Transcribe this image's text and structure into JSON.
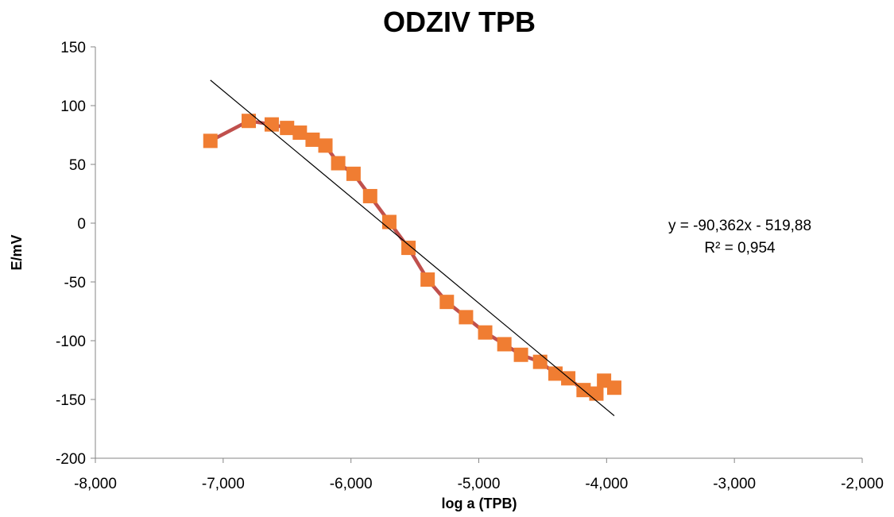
{
  "chart_data": {
    "type": "scatter",
    "title": "ODZIV TPB",
    "xlabel": "log a (TPB)",
    "ylabel": "E/mV",
    "xlim": [
      -8,
      -2
    ],
    "ylim": [
      -200,
      150
    ],
    "x_ticks": [
      -8,
      -7,
      -6,
      -5,
      -4,
      -3,
      -2
    ],
    "x_tick_labels": [
      "-8,000",
      "-7,000",
      "-6,000",
      "-5,000",
      "-4,000",
      "-3,000",
      "-2,000"
    ],
    "y_ticks": [
      -200,
      -150,
      -100,
      -50,
      0,
      50,
      100,
      150
    ],
    "y_tick_labels": [
      "-200",
      "-150",
      "-100",
      "-50",
      "0",
      "50",
      "100",
      "150"
    ],
    "grid": false,
    "legend": "none",
    "series": [
      {
        "marker": "square",
        "line_color": "#c0504d",
        "marker_color": "#f07d32",
        "x": [
          -7.1,
          -6.8,
          -6.62,
          -6.5,
          -6.4,
          -6.3,
          -6.2,
          -6.1,
          -5.98,
          -5.85,
          -5.7,
          -5.55,
          -5.4,
          -5.25,
          -5.1,
          -4.95,
          -4.8,
          -4.67,
          -4.52,
          -4.4,
          -4.3,
          -4.18,
          -4.08,
          -4.02,
          -3.94
        ],
        "y": [
          70,
          87,
          84,
          81,
          77,
          71,
          66,
          51,
          42,
          23,
          1,
          -21,
          -48,
          -67,
          -80,
          -93,
          -103,
          -112,
          -118,
          -128,
          -132,
          -142,
          -145,
          -134,
          -140
        ]
      }
    ],
    "trendline": {
      "type": "linear",
      "slope": -90.362,
      "intercept": -519.88,
      "x_range": [
        -7.1,
        -3.94
      ],
      "color": "#000000",
      "equation_label": "y = -90,362x - 519,88",
      "r2_label": "R² = 0,954"
    }
  }
}
